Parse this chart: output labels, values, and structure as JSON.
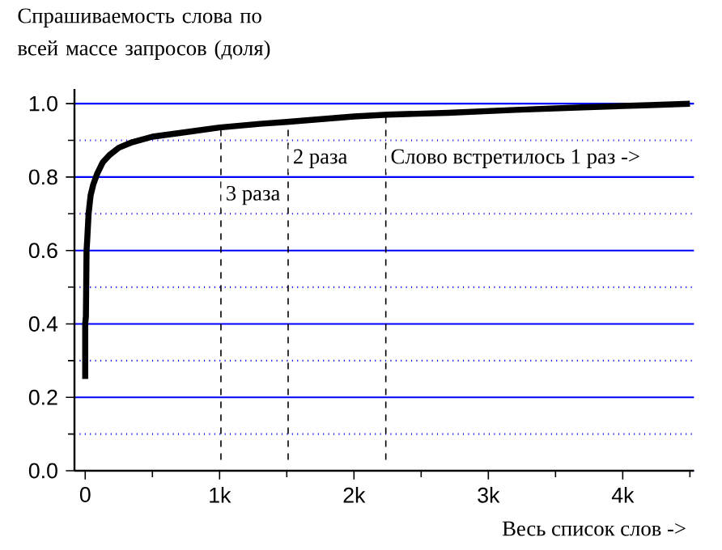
{
  "chart_data": {
    "type": "line",
    "ylabel": "Спрашиваемость слова по всей массе запросов (доля)",
    "xlabel": "Весь список слов ->",
    "x": [
      0,
      0,
      5,
      10,
      15,
      25,
      40,
      60,
      90,
      130,
      180,
      250,
      350,
      500,
      700,
      1000,
      1300,
      1500,
      2000,
      2250,
      2700,
      3200,
      3700,
      4200,
      4500
    ],
    "series": [
      {
        "color": "#000000",
        "values": [
          0.25,
          0.4,
          0.42,
          0.6,
          0.63,
          0.7,
          0.75,
          0.78,
          0.81,
          0.84,
          0.86,
          0.88,
          0.895,
          0.91,
          0.92,
          0.935,
          0.945,
          0.95,
          0.965,
          0.97,
          0.975,
          0.983,
          0.99,
          0.996,
          1.0
        ]
      }
    ],
    "xlim": [
      -80,
      4530
    ],
    "ylim": [
      0,
      1.04
    ],
    "xticks": [
      0,
      {
        "value": 500,
        "label": null
      },
      {
        "value": 1000,
        "label": "1k"
      },
      {
        "value": 1500,
        "label": null
      },
      {
        "value": 2000,
        "label": "2k"
      },
      {
        "value": 2500,
        "label": null
      },
      {
        "value": 3000,
        "label": "3k"
      },
      {
        "value": 3500,
        "label": null
      },
      {
        "value": 4000,
        "label": "4k"
      },
      {
        "value": 4500,
        "label": null
      }
    ],
    "yticks": [
      {
        "value": 0,
        "label": "0.0"
      },
      {
        "value": 0.1,
        "label": null
      },
      {
        "value": 0.2,
        "label": "0.2"
      },
      {
        "value": 0.3,
        "label": null
      },
      {
        "value": 0.4,
        "label": "0.4"
      },
      {
        "value": 0.5,
        "label": null
      },
      {
        "value": 0.6,
        "label": "0.6"
      },
      {
        "value": 0.7,
        "label": null
      },
      {
        "value": 0.8,
        "label": "0.8"
      },
      {
        "value": 0.9,
        "label": null
      },
      {
        "value": 1.0,
        "label": "1.0"
      }
    ],
    "grid": "y",
    "marker": "none",
    "line_style": "solid",
    "ref_lines": [
      {
        "axis": "x",
        "value": 1010,
        "label": "3 раза",
        "color": "#000000",
        "line_style": "dashed"
      },
      {
        "axis": "x",
        "value": 1510,
        "label": "2 раза",
        "color": "#000000",
        "line_style": "dashed"
      },
      {
        "axis": "x",
        "value": 2237,
        "label": "Слово встретилось 1 раз ->",
        "color": "#000000",
        "line_style": "dashed"
      }
    ]
  }
}
